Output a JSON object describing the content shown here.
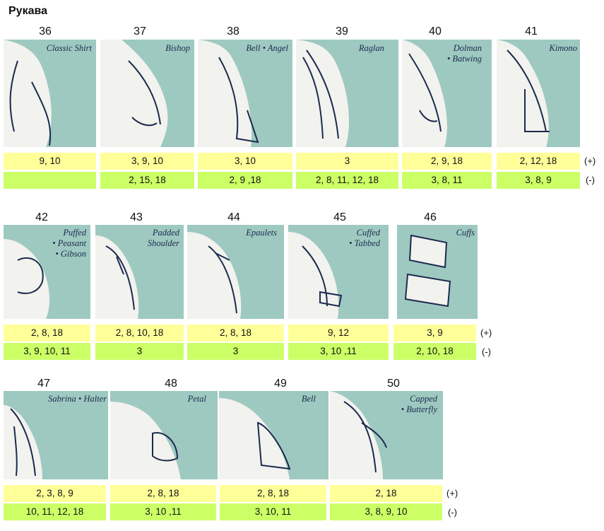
{
  "title": "Рукава",
  "rows": [
    {
      "items": [
        {
          "num": "36",
          "label": "Classic Shirt",
          "plus": "9, 10",
          "minus": ""
        },
        {
          "num": "37",
          "label": "Bishop",
          "plus": "3, 9, 10",
          "minus": "2, 15, 18"
        },
        {
          "num": "38",
          "label": "Bell • Angel",
          "plus": "3, 10",
          "minus": "2, 9 ,18"
        },
        {
          "num": "39",
          "label": "Raglan",
          "plus": "3",
          "minus": "2, 8, 11, 12, 18"
        },
        {
          "num": "40",
          "label": "Dolman\n• Batwing",
          "plus": "2, 9, 18",
          "minus": "3, 8, 11"
        },
        {
          "num": "41",
          "label": "Kimono",
          "plus": "2, 12, 18",
          "minus": "3, 8, 9"
        }
      ],
      "plus_mark": "(+)",
      "minus_mark": "(-)"
    },
    {
      "items": [
        {
          "num": "42",
          "label": "Puffed\n• Peasant\n• Gibson",
          "plus": "2, 8, 18",
          "minus": "3, 9, 10, 11"
        },
        {
          "num": "43",
          "label": "Padded\nShoulder",
          "plus": "2, 8, 10, 18",
          "minus": "3"
        },
        {
          "num": "44",
          "label": "Epaulets",
          "plus": "2, 8, 18",
          "minus": "3"
        },
        {
          "num": "45",
          "label": "Cuffed\n• Tabbed",
          "plus": "9, 12",
          "minus": "3, 10 ,11"
        },
        {
          "num": "46",
          "label": "Cuffs",
          "plus": "3, 9",
          "minus": "2, 10, 18"
        }
      ],
      "plus_mark": "(+)",
      "minus_mark": "(-)"
    },
    {
      "items": [
        {
          "num": "47",
          "label": "Sabrina • Halter",
          "plus": "2, 3, 8, 9",
          "minus": "10, 11, 12, 18"
        },
        {
          "num": "48",
          "label": "Petal",
          "plus": "2, 8, 18",
          "minus": "3, 10 ,11"
        },
        {
          "num": "49",
          "label": "Bell",
          "plus": "2, 8, 18",
          "minus": "3, 10, 11"
        },
        {
          "num": "50",
          "label": "Capped\n• Butterfly",
          "plus": "2, 18",
          "minus": "3, 8, 9, 10"
        }
      ],
      "plus_mark": "(+)",
      "minus_mark": "(-)"
    }
  ]
}
